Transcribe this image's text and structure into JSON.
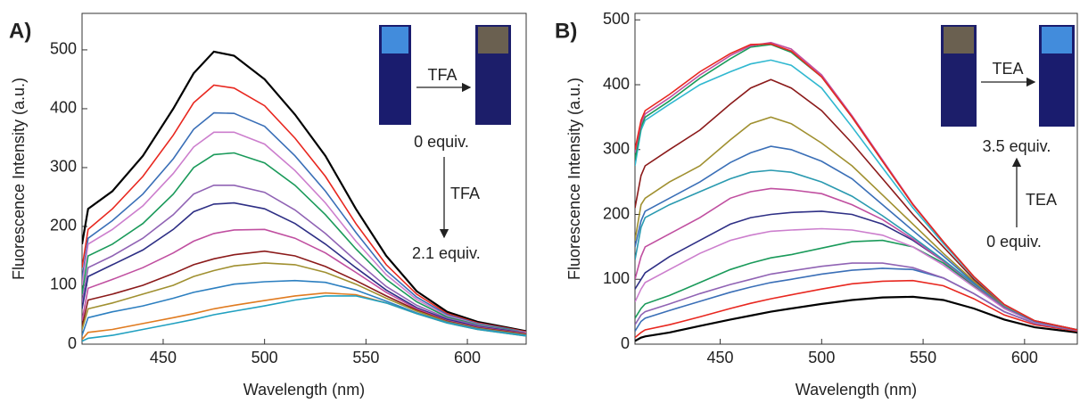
{
  "chart_data": [
    {
      "type": "line",
      "label": "A)",
      "x_label": "Wavelength (nm)",
      "y_label": "Fluorescence Intensity (a.u.)",
      "xlim": [
        410,
        629
      ],
      "ylim": [
        0,
        562
      ],
      "xticks": [
        450,
        500,
        550,
        600
      ],
      "yticks": [
        0,
        100,
        200,
        300,
        400,
        500
      ],
      "annotations": [
        "TFA",
        "0 equiv.",
        "TFA",
        "2.1 equiv."
      ],
      "x": [
        410,
        413,
        425,
        440,
        455,
        465,
        475,
        485,
        500,
        515,
        530,
        545,
        560,
        575,
        590,
        605,
        620,
        629
      ],
      "series": [
        {
          "color": "#000000",
          "values": [
            170,
            230,
            260,
            320,
            400,
            460,
            497,
            490,
            450,
            390,
            320,
            230,
            150,
            90,
            55,
            38,
            28,
            22
          ]
        },
        {
          "color": "#e8271f",
          "values": [
            130,
            195,
            230,
            285,
            355,
            410,
            440,
            435,
            405,
            350,
            285,
            205,
            135,
            85,
            52,
            36,
            27,
            21
          ]
        },
        {
          "color": "#3a6fb7",
          "values": [
            110,
            180,
            210,
            255,
            315,
            365,
            393,
            392,
            370,
            320,
            260,
            190,
            125,
            80,
            50,
            35,
            26,
            20
          ]
        },
        {
          "color": "#cc7ecd",
          "values": [
            100,
            170,
            195,
            235,
            290,
            335,
            360,
            360,
            340,
            295,
            240,
            175,
            118,
            76,
            48,
            34,
            25,
            20
          ]
        },
        {
          "color": "#1a9a5a",
          "values": [
            85,
            150,
            170,
            205,
            255,
            300,
            322,
            325,
            308,
            270,
            220,
            162,
            110,
            72,
            46,
            33,
            25,
            19
          ]
        },
        {
          "color": "#9063b4",
          "values": [
            70,
            130,
            150,
            180,
            220,
            255,
            270,
            270,
            258,
            228,
            188,
            142,
            98,
            66,
            44,
            32,
            24,
            19
          ]
        },
        {
          "color": "#2e2f85",
          "values": [
            60,
            115,
            135,
            160,
            195,
            225,
            238,
            240,
            230,
            205,
            170,
            130,
            92,
            62,
            42,
            30,
            23,
            18
          ]
        },
        {
          "color": "#c04fa0",
          "values": [
            40,
            95,
            110,
            130,
            155,
            175,
            188,
            194,
            195,
            180,
            155,
            122,
            88,
            60,
            40,
            29,
            22,
            18
          ]
        },
        {
          "color": "#8b1a1a",
          "values": [
            30,
            75,
            85,
            100,
            120,
            135,
            145,
            152,
            158,
            150,
            132,
            108,
            82,
            58,
            39,
            28,
            21,
            17
          ]
        },
        {
          "color": "#a09030",
          "values": [
            25,
            60,
            70,
            85,
            100,
            115,
            125,
            133,
            138,
            135,
            122,
            102,
            78,
            56,
            38,
            27,
            20,
            16
          ]
        },
        {
          "color": "#2c7fc0",
          "values": [
            15,
            45,
            55,
            65,
            78,
            88,
            95,
            102,
            106,
            108,
            105,
            92,
            73,
            53,
            37,
            26,
            19,
            15
          ]
        },
        {
          "color": "#e07b20",
          "values": [
            8,
            20,
            25,
            35,
            45,
            52,
            60,
            66,
            74,
            82,
            87,
            84,
            70,
            52,
            36,
            25,
            18,
            14
          ]
        },
        {
          "color": "#20a0c0",
          "values": [
            5,
            10,
            15,
            25,
            35,
            42,
            50,
            56,
            65,
            75,
            82,
            82,
            70,
            52,
            36,
            25,
            18,
            14
          ]
        }
      ]
    },
    {
      "type": "line",
      "label": "B)",
      "x_label": "Wavelength (nm)",
      "y_label": "Fluorescence Intensity (a.u.)",
      "xlim": [
        408,
        626
      ],
      "ylim": [
        0,
        510
      ],
      "xticks": [
        450,
        500,
        550,
        600
      ],
      "yticks": [
        0,
        100,
        200,
        300,
        400,
        500
      ],
      "annotations": [
        "TEA",
        "3.5 equiv.",
        "TEA",
        "0 equiv."
      ],
      "x": [
        408,
        411,
        413,
        425,
        440,
        455,
        465,
        475,
        485,
        500,
        515,
        530,
        545,
        560,
        575,
        590,
        605,
        626
      ],
      "series": [
        {
          "color": "#000000",
          "values": [
            5,
            10,
            12,
            18,
            28,
            38,
            44,
            50,
            55,
            62,
            68,
            72,
            73,
            68,
            55,
            38,
            26,
            18
          ]
        },
        {
          "color": "#e8271f",
          "values": [
            10,
            18,
            22,
            30,
            42,
            55,
            63,
            70,
            76,
            85,
            93,
            97,
            98,
            90,
            70,
            45,
            30,
            20
          ]
        },
        {
          "color": "#3a6fb7",
          "values": [
            20,
            35,
            40,
            52,
            66,
            80,
            88,
            95,
            100,
            108,
            114,
            117,
            115,
            102,
            78,
            50,
            32,
            21
          ]
        },
        {
          "color": "#9063b4",
          "values": [
            30,
            45,
            50,
            62,
            78,
            92,
            100,
            108,
            113,
            120,
            125,
            125,
            118,
            102,
            78,
            50,
            32,
            21
          ]
        },
        {
          "color": "#1a9a5a",
          "values": [
            40,
            55,
            62,
            75,
            95,
            115,
            125,
            133,
            138,
            148,
            158,
            160,
            150,
            125,
            90,
            55,
            34,
            22
          ]
        },
        {
          "color": "#cc7ecd",
          "values": [
            65,
            85,
            95,
            115,
            140,
            160,
            168,
            174,
            176,
            178,
            176,
            168,
            150,
            122,
            88,
            55,
            34,
            22
          ]
        },
        {
          "color": "#2e2f85",
          "values": [
            85,
            100,
            110,
            135,
            160,
            185,
            195,
            200,
            203,
            205,
            200,
            185,
            160,
            128,
            92,
            57,
            35,
            22
          ]
        },
        {
          "color": "#c04fa0",
          "values": [
            100,
            135,
            150,
            170,
            195,
            225,
            235,
            240,
            238,
            232,
            215,
            192,
            162,
            128,
            92,
            57,
            35,
            22
          ]
        },
        {
          "color": "#2a9ab0",
          "values": [
            130,
            180,
            195,
            215,
            235,
            255,
            265,
            268,
            265,
            250,
            228,
            198,
            165,
            130,
            93,
            58,
            35,
            22
          ]
        },
        {
          "color": "#3a6fb7",
          "values": [
            150,
            190,
            205,
            225,
            250,
            280,
            295,
            305,
            300,
            282,
            255,
            215,
            175,
            136,
            95,
            58,
            35,
            22
          ]
        },
        {
          "color": "#a09030",
          "values": [
            160,
            215,
            225,
            250,
            275,
            315,
            340,
            350,
            340,
            310,
            275,
            230,
            185,
            140,
            97,
            59,
            36,
            22
          ]
        },
        {
          "color": "#8b1a1a",
          "values": [
            210,
            260,
            275,
            300,
            330,
            370,
            395,
            408,
            395,
            360,
            310,
            255,
            200,
            150,
            100,
            60,
            36,
            22
          ]
        },
        {
          "color": "#30b8d0",
          "values": [
            275,
            330,
            345,
            370,
            400,
            420,
            432,
            438,
            430,
            395,
            335,
            272,
            210,
            155,
            103,
            60,
            36,
            22
          ]
        },
        {
          "color": "#1a9a5a",
          "values": [
            285,
            335,
            350,
            375,
            410,
            440,
            458,
            462,
            450,
            412,
            350,
            282,
            215,
            158,
            104,
            61,
            36,
            22
          ]
        },
        {
          "color": "#c04fa0",
          "values": [
            295,
            340,
            355,
            380,
            415,
            445,
            460,
            465,
            455,
            415,
            352,
            284,
            216,
            158,
            104,
            61,
            36,
            22
          ]
        },
        {
          "color": "#e8271f",
          "values": [
            300,
            345,
            360,
            385,
            420,
            448,
            462,
            463,
            452,
            412,
            350,
            282,
            215,
            158,
            104,
            61,
            36,
            22
          ]
        }
      ]
    }
  ]
}
